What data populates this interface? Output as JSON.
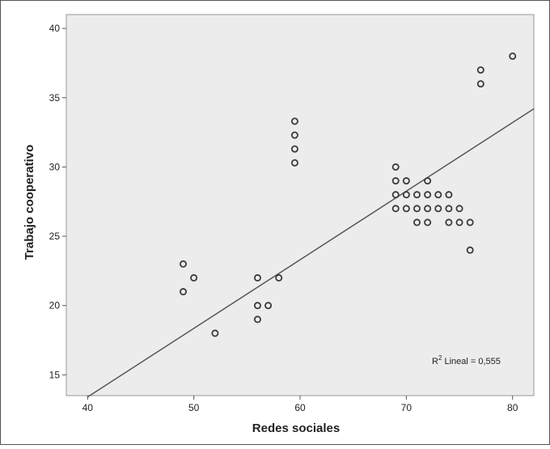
{
  "chart_data": {
    "type": "scatter",
    "title": "",
    "xlabel": "Redes sociales",
    "ylabel": "Trabajo cooperativo",
    "xlim": [
      38,
      82
    ],
    "ylim": [
      13.5,
      41
    ],
    "xticks": [
      40,
      50,
      60,
      70,
      80
    ],
    "yticks": [
      15,
      20,
      25,
      30,
      35,
      40
    ],
    "grid": false,
    "background": "#ececec",
    "marker_color": "#3a3a3a",
    "line_color": "#555555",
    "annotation": {
      "prefix": "R",
      "sup": "2",
      "text": " Lineal = 0,555"
    },
    "fit_line": {
      "x": [
        40,
        82
      ],
      "y": [
        13.4,
        34.2
      ]
    },
    "points": [
      {
        "x": 49,
        "y": 23
      },
      {
        "x": 49,
        "y": 21
      },
      {
        "x": 50,
        "y": 22
      },
      {
        "x": 52,
        "y": 18
      },
      {
        "x": 56,
        "y": 22
      },
      {
        "x": 56,
        "y": 20
      },
      {
        "x": 56,
        "y": 19
      },
      {
        "x": 57,
        "y": 20
      },
      {
        "x": 58,
        "y": 22
      },
      {
        "x": 59.5,
        "y": 33.3
      },
      {
        "x": 59.5,
        "y": 32.3
      },
      {
        "x": 59.5,
        "y": 31.3
      },
      {
        "x": 59.5,
        "y": 30.3
      },
      {
        "x": 69,
        "y": 30
      },
      {
        "x": 69,
        "y": 29
      },
      {
        "x": 69,
        "y": 28
      },
      {
        "x": 69,
        "y": 27
      },
      {
        "x": 70,
        "y": 29
      },
      {
        "x": 70,
        "y": 28
      },
      {
        "x": 70,
        "y": 27
      },
      {
        "x": 71,
        "y": 28
      },
      {
        "x": 71,
        "y": 27
      },
      {
        "x": 71,
        "y": 26
      },
      {
        "x": 72,
        "y": 29
      },
      {
        "x": 72,
        "y": 28
      },
      {
        "x": 72,
        "y": 27
      },
      {
        "x": 72,
        "y": 26
      },
      {
        "x": 73,
        "y": 28
      },
      {
        "x": 73,
        "y": 27
      },
      {
        "x": 74,
        "y": 28
      },
      {
        "x": 74,
        "y": 27
      },
      {
        "x": 74,
        "y": 26
      },
      {
        "x": 75,
        "y": 27
      },
      {
        "x": 75,
        "y": 26
      },
      {
        "x": 76,
        "y": 26
      },
      {
        "x": 76,
        "y": 24
      },
      {
        "x": 77,
        "y": 37
      },
      {
        "x": 77,
        "y": 36
      },
      {
        "x": 80,
        "y": 38
      }
    ]
  }
}
